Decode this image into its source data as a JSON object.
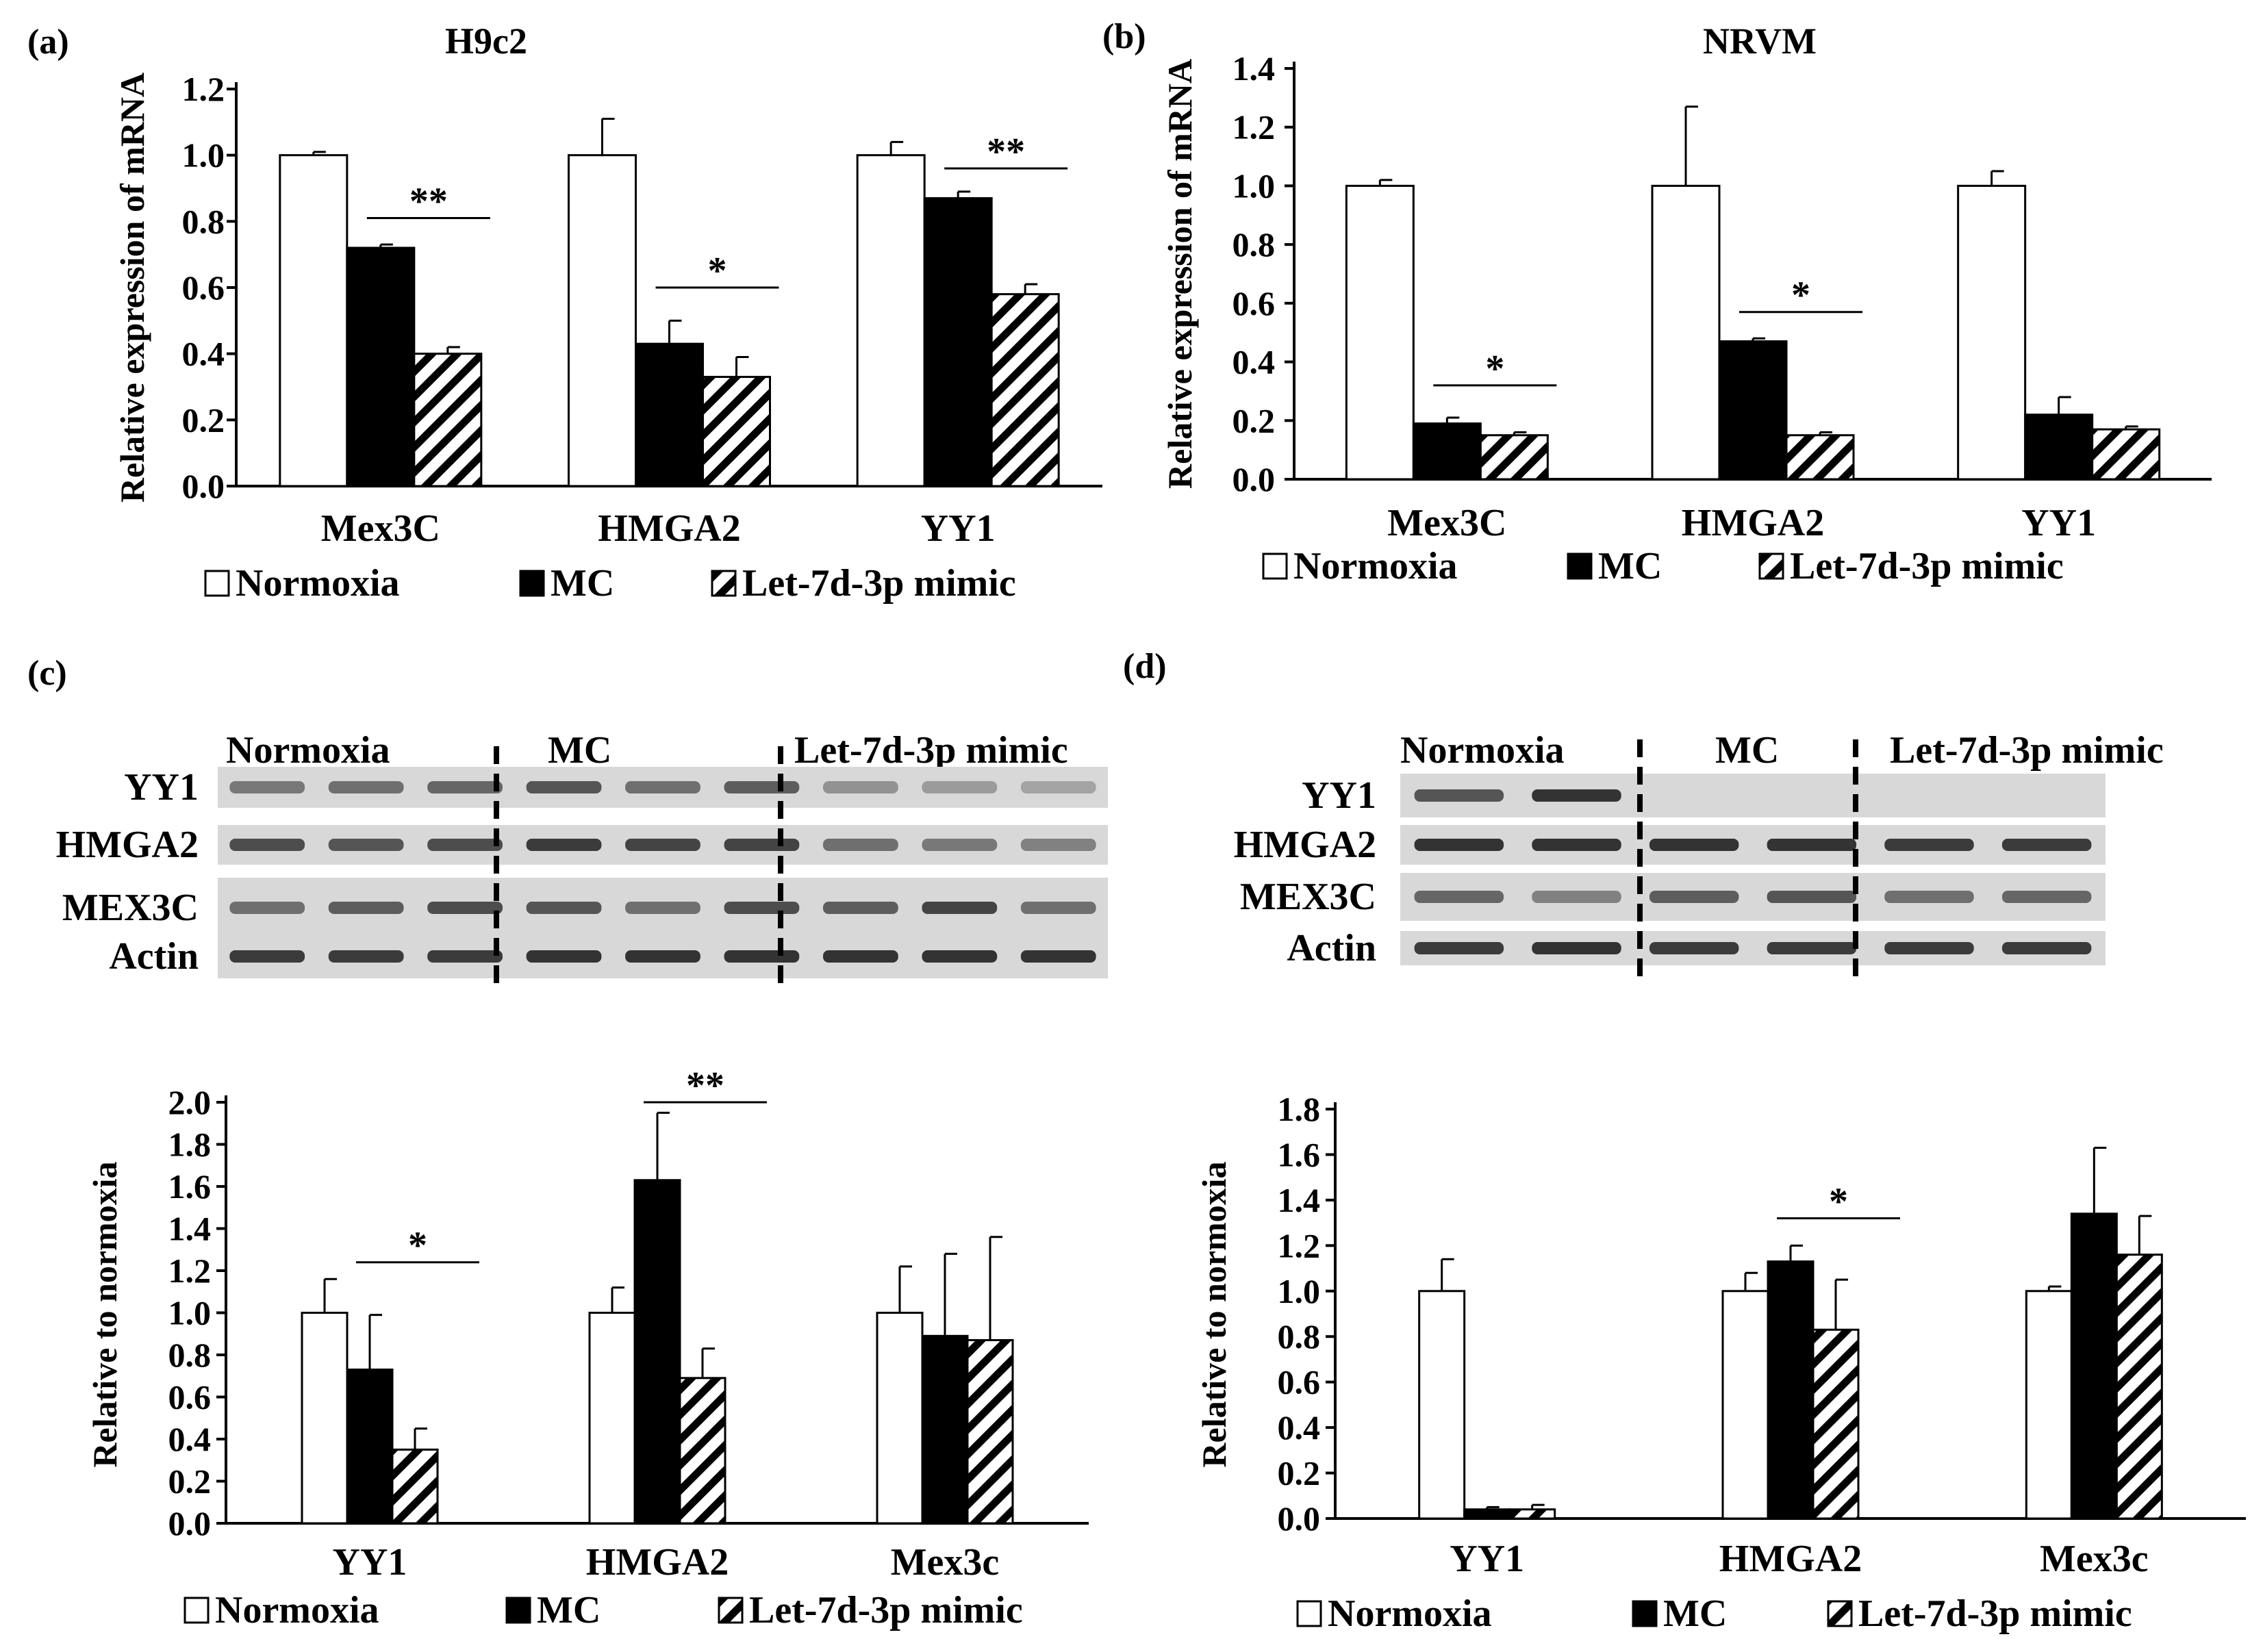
{
  "figure": {
    "legend_labels": [
      "Normoxia",
      "MC",
      "Let-7d-3p mimic"
    ],
    "colors": {
      "normoxia": "#ffffff",
      "mc": "#000000",
      "hatch": "#000000",
      "axis": "#000000",
      "blot_bg": "#d8d8d8",
      "band": "#2a2a2a"
    }
  },
  "chart_data": [
    {
      "panel": "(a)",
      "type": "bar",
      "title": "H9c2",
      "ylabel": "Relative expression of mRNA",
      "xlabel": "",
      "ylim": [
        0,
        1.2
      ],
      "yticks": [
        "0.0",
        "0.2",
        "0.4",
        "0.6",
        "0.8",
        "1.0",
        "1.2"
      ],
      "categories": [
        "Mex3C",
        "HMGA2",
        "YY1"
      ],
      "series": [
        {
          "name": "Normoxia",
          "values": [
            1.0,
            1.0,
            1.0
          ],
          "errors": [
            0.01,
            0.11,
            0.04
          ]
        },
        {
          "name": "MC",
          "values": [
            0.72,
            0.43,
            0.87
          ],
          "errors": [
            0.01,
            0.07,
            0.02
          ]
        },
        {
          "name": "Let-7d-3p mimic",
          "values": [
            0.4,
            0.33,
            0.58
          ],
          "errors": [
            0.02,
            0.06,
            0.03
          ]
        }
      ],
      "significance": [
        {
          "category": 0,
          "label": "**",
          "y": 0.81
        },
        {
          "category": 1,
          "label": "*",
          "y": 0.6
        },
        {
          "category": 2,
          "label": "**",
          "y": 0.96
        }
      ]
    },
    {
      "panel": "(b)",
      "type": "bar",
      "title": "NRVM",
      "ylabel": "Relative expression of mRNA",
      "xlabel": "",
      "ylim": [
        0,
        1.4
      ],
      "yticks": [
        "0.0",
        "0.2",
        "0.4",
        "0.6",
        "0.8",
        "1.0",
        "1.2",
        "1.4"
      ],
      "categories": [
        "Mex3C",
        "HMGA2",
        "YY1"
      ],
      "series": [
        {
          "name": "Normoxia",
          "values": [
            1.0,
            1.0,
            1.0
          ],
          "errors": [
            0.02,
            0.27,
            0.05
          ]
        },
        {
          "name": "MC",
          "values": [
            0.19,
            0.47,
            0.22
          ],
          "errors": [
            0.02,
            0.01,
            0.06
          ]
        },
        {
          "name": "Let-7d-3p mimic",
          "values": [
            0.15,
            0.15,
            0.17
          ],
          "errors": [
            0.01,
            0.01,
            0.01
          ]
        }
      ],
      "significance": [
        {
          "category": 0,
          "label": "*",
          "y": 0.32
        },
        {
          "category": 1,
          "label": "*",
          "y": 0.57
        }
      ]
    },
    {
      "panel": "(c)",
      "type": "bar",
      "title": "",
      "ylabel": "Relative to normoxia",
      "xlabel": "",
      "ylim": [
        0,
        2.0
      ],
      "yticks": [
        "0.0",
        "0.2",
        "0.4",
        "0.6",
        "0.8",
        "1.0",
        "1.2",
        "1.4",
        "1.6",
        "1.8",
        "2.0"
      ],
      "categories": [
        "YY1",
        "HMGA2",
        "Mex3c"
      ],
      "series": [
        {
          "name": "Normoxia",
          "values": [
            1.0,
            1.0,
            1.0
          ],
          "errors": [
            0.16,
            0.12,
            0.22
          ]
        },
        {
          "name": "MC",
          "values": [
            0.73,
            1.63,
            0.89
          ],
          "errors": [
            0.26,
            0.32,
            0.39
          ]
        },
        {
          "name": "Let-7d-3p mimic",
          "values": [
            0.35,
            0.69,
            0.87
          ],
          "errors": [
            0.1,
            0.14,
            0.49
          ]
        }
      ],
      "significance": [
        {
          "category": 0,
          "label": "*",
          "y": 1.24
        },
        {
          "category": 1,
          "label": "**",
          "y": 2.0
        }
      ]
    },
    {
      "panel": "(d)",
      "type": "bar",
      "title": "",
      "ylabel": "Relative to normoxia",
      "xlabel": "",
      "ylim": [
        0,
        1.8
      ],
      "yticks": [
        "0.0",
        "0.2",
        "0.4",
        "0.6",
        "0.8",
        "1.0",
        "1.2",
        "1.4",
        "1.6",
        "1.8"
      ],
      "categories": [
        "YY1",
        "HMGA2",
        "Mex3c"
      ],
      "series": [
        {
          "name": "Normoxia",
          "values": [
            1.0,
            1.0,
            1.0
          ],
          "errors": [
            0.14,
            0.08,
            0.02
          ]
        },
        {
          "name": "MC",
          "values": [
            0.04,
            1.13,
            1.34
          ],
          "errors": [
            0.01,
            0.07,
            0.29
          ]
        },
        {
          "name": "Let-7d-3p mimic",
          "values": [
            0.04,
            0.83,
            1.16
          ],
          "errors": [
            0.02,
            0.22,
            0.17
          ]
        }
      ],
      "significance": [
        {
          "category": 1,
          "label": "*",
          "y": 1.32
        }
      ]
    }
  ],
  "blots": [
    {
      "panel": "(c)",
      "groups": [
        "Normoxia",
        "MC",
        "Let-7d-3p mimic"
      ],
      "lanes_per_group": 3,
      "rows": [
        "YY1",
        "HMGA2",
        "MEX3C",
        "Actin"
      ],
      "band_intensity": [
        [
          0.55,
          0.6,
          0.65,
          0.75,
          0.6,
          0.7,
          0.4,
          0.35,
          0.3
        ],
        [
          0.8,
          0.75,
          0.8,
          0.9,
          0.85,
          0.85,
          0.6,
          0.55,
          0.5
        ],
        [
          0.6,
          0.7,
          0.8,
          0.75,
          0.6,
          0.8,
          0.7,
          0.85,
          0.6
        ],
        [
          0.9,
          0.9,
          0.9,
          0.95,
          0.95,
          0.95,
          0.95,
          0.95,
          0.95
        ]
      ]
    },
    {
      "panel": "(d)",
      "groups": [
        "Normoxia",
        "MC",
        "Let-7d-3p mimic"
      ],
      "lanes_per_group": 2,
      "rows": [
        "YY1",
        "HMGA2",
        "MEX3C",
        "Actin"
      ],
      "band_intensity": [
        [
          0.75,
          0.95,
          0.0,
          0.0,
          0.0,
          0.0
        ],
        [
          0.95,
          0.95,
          0.95,
          0.95,
          0.9,
          0.9
        ],
        [
          0.65,
          0.5,
          0.7,
          0.75,
          0.6,
          0.65
        ],
        [
          0.9,
          0.95,
          0.9,
          0.9,
          0.9,
          0.9
        ]
      ]
    }
  ]
}
